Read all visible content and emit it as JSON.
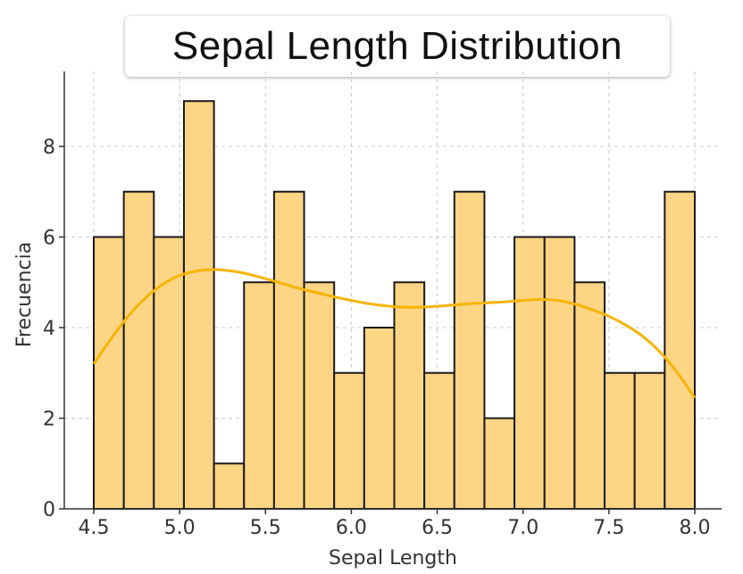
{
  "chart_data": {
    "type": "bar",
    "title": "Sepal Length Distribution",
    "xlabel": "Sepal Length",
    "ylabel": "Frecuencia",
    "bin_edges": [
      4.5,
      4.675,
      4.85,
      5.025,
      5.2,
      5.375,
      5.55,
      5.725,
      5.9,
      6.075,
      6.25,
      6.425,
      6.6,
      6.775,
      6.95,
      7.125,
      7.3,
      7.475,
      7.65,
      7.825,
      8.0
    ],
    "values": [
      6,
      7,
      6,
      9,
      1,
      5,
      7,
      5,
      3,
      4,
      5,
      3,
      7,
      2,
      6,
      6,
      5,
      3,
      3,
      7
    ],
    "xlim": [
      4.5,
      8.0
    ],
    "ylim": [
      0,
      9.3
    ],
    "x_ticks": [
      "4.5",
      "5.0",
      "5.5",
      "6.0",
      "6.5",
      "7.0",
      "7.5",
      "8.0"
    ],
    "y_ticks": [
      "0",
      "2",
      "4",
      "6",
      "8"
    ],
    "kde": {
      "x": [
        4.5,
        4.6,
        4.7,
        4.8,
        4.9,
        5.0,
        5.1,
        5.2,
        5.3,
        5.4,
        5.5,
        5.6,
        5.7,
        5.8,
        5.9,
        6.0,
        6.1,
        6.2,
        6.3,
        6.4,
        6.5,
        6.6,
        6.7,
        6.8,
        6.9,
        7.0,
        7.1,
        7.2,
        7.3,
        7.4,
        7.5,
        7.6,
        7.7,
        7.8,
        7.9,
        8.0
      ],
      "y": [
        3.2,
        3.75,
        4.25,
        4.65,
        4.95,
        5.15,
        5.25,
        5.28,
        5.25,
        5.18,
        5.08,
        4.97,
        4.86,
        4.77,
        4.68,
        4.6,
        4.53,
        4.48,
        4.45,
        4.45,
        4.47,
        4.5,
        4.53,
        4.55,
        4.57,
        4.6,
        4.62,
        4.6,
        4.52,
        4.4,
        4.25,
        4.05,
        3.8,
        3.45,
        3.0,
        2.45
      ]
    },
    "grid": true,
    "colors": {
      "bar_fill": "#FDD584",
      "bar_edge": "#1a1a1a",
      "kde_line": "#F6B400",
      "grid": "#cccccc"
    }
  }
}
